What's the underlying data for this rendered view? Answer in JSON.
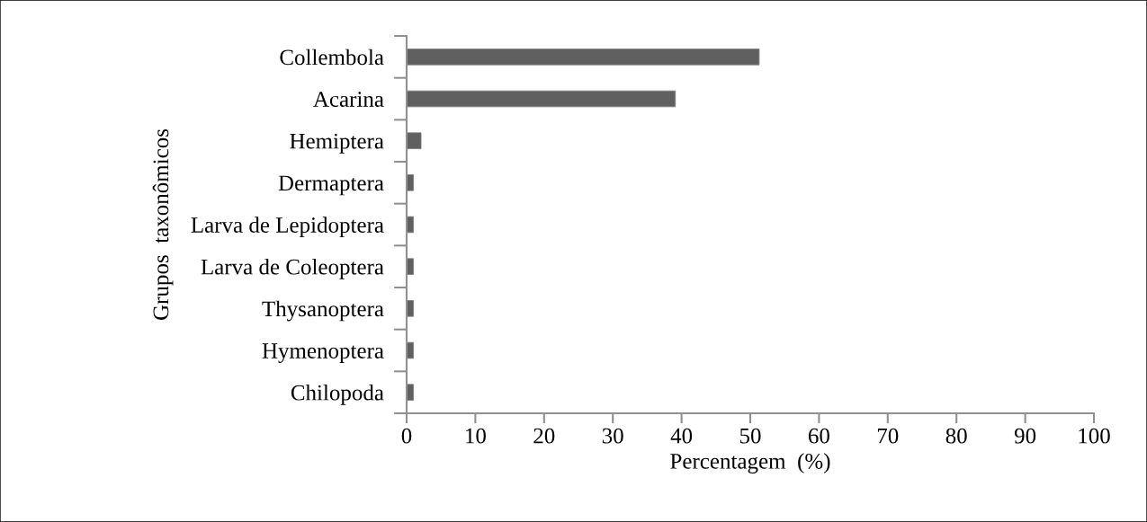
{
  "chart_data": {
    "type": "bar",
    "orientation": "horizontal",
    "categories": [
      "Collembola",
      "Acarina",
      "Hemiptera",
      "Dermaptera",
      "Larva de Lepidoptera",
      "Larva de Coleoptera",
      "Thysanoptera",
      "Hymenoptera",
      "Chilopoda"
    ],
    "values": [
      51.3,
      39.1,
      2.1,
      1.0,
      1.0,
      1.0,
      1.0,
      1.0,
      1.0
    ],
    "color": "#606060",
    "xlim": [
      0,
      100
    ],
    "xticks": [
      0,
      10,
      20,
      30,
      40,
      50,
      60,
      70,
      80,
      90,
      100
    ],
    "xlabel": "Percentagem  (%)",
    "ylabel": "Grupos  taxonômicos",
    "grid": false,
    "legend": false
  }
}
